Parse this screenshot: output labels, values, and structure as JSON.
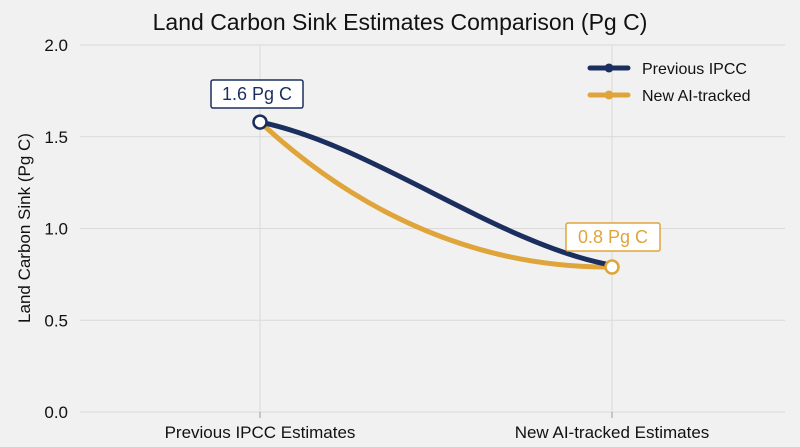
{
  "chart_data": {
    "type": "line",
    "title": "Land Carbon Sink Estimates Comparison (Pg C)",
    "xlabel": "",
    "ylabel": "Land Carbon Sink (Pg C)",
    "categories": [
      "Previous IPCC Estimates",
      "New AI-tracked Estimates"
    ],
    "ylim": [
      0,
      2.0
    ],
    "yticks": [
      "0.0",
      "0.5",
      "1.0",
      "1.5",
      "2.0"
    ],
    "grid": true,
    "legend_position": "top-right",
    "series": [
      {
        "name": "Previous IPCC",
        "values": [
          1.58,
          0.8
        ],
        "color": "#1b2f5e"
      },
      {
        "name": "New AI-tracked",
        "values": [
          1.58,
          0.79
        ],
        "color": "#e0a53a"
      }
    ],
    "annotations": [
      {
        "text": "1.6 Pg C",
        "category_index": 0,
        "value": 1.58,
        "color": "#1b2f5e"
      },
      {
        "text": "0.8 Pg C",
        "category_index": 1,
        "value": 0.79,
        "color": "#e0a53a"
      }
    ]
  }
}
